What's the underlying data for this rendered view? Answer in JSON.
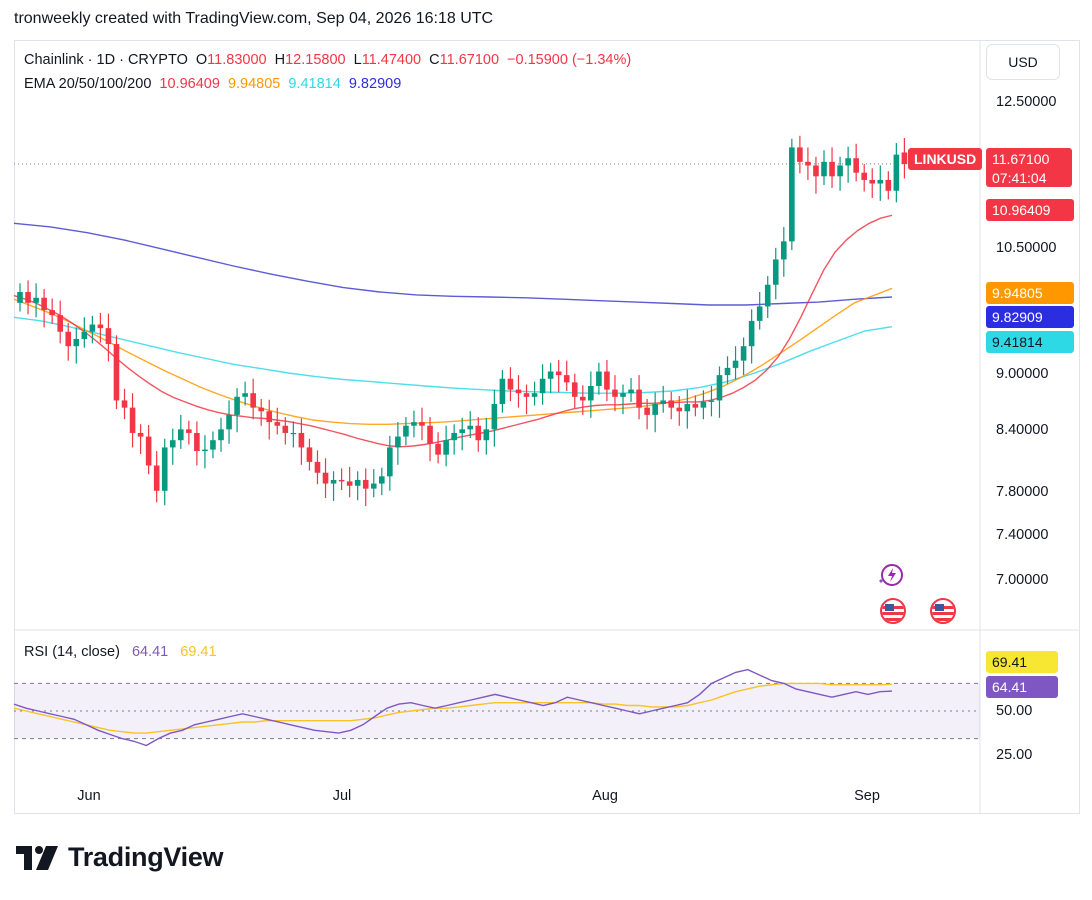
{
  "header": {
    "attribution": "tronweekly created with TradingView.com, Sep 04, 2026 16:18 UTC"
  },
  "brand": {
    "name": "TradingView"
  },
  "currency_button": "USD",
  "legend": {
    "symbol": "Chainlink · 1D · CRYPTO",
    "o_label": "O",
    "o_value": "11.83000",
    "h_label": "H",
    "h_value": "12.15800",
    "l_label": "L",
    "l_value": "11.47400",
    "c_label": "C",
    "c_value": "11.67100",
    "change": "−0.15900 (−1.34%)",
    "ema_label": "EMA 20/50/100/200",
    "ema20": "10.96409",
    "ema50": "9.94805",
    "ema100": "9.41814",
    "ema200": "9.82909"
  },
  "rsi_legend": {
    "label": "RSI (14, close)",
    "rsi": "64.41",
    "ma": "69.41"
  },
  "price_tags": {
    "symbol": "LINKUSD",
    "last": "11.67100",
    "countdown": "07:41:04",
    "ema20": "10.96409",
    "ema50": "9.94805",
    "ema200": "9.82909",
    "ema100": "9.41814",
    "rsi_ma": "69.41",
    "rsi": "64.41"
  },
  "colors": {
    "up": "#089981",
    "down": "#f23645",
    "ema20": "#f23645",
    "ema50": "#ff9800",
    "ema100": "#2ed9e6",
    "ema200": "#3f3fcf",
    "rsi": "#7e57c2",
    "rsi_ma": "#f7c325"
  },
  "icons": [
    "lightning-icon",
    "us-flag-icon",
    "us-flag-icon",
    "tradingview-logo"
  ],
  "chart_data": [
    {
      "type": "candlestick",
      "title": "Chainlink · 1D · CRYPTO",
      "price_axis_ticks": [
        "12.50000",
        "10.50000",
        "9.00000",
        "8.40000",
        "7.80000",
        "7.40000",
        "7.00000"
      ],
      "x_axis_labels": [
        "Jun",
        "Jul",
        "Aug",
        "Sep"
      ],
      "close": [
        9.9,
        9.75,
        9.82,
        9.65,
        9.58,
        9.35,
        9.15,
        9.25,
        9.35,
        9.45,
        9.4,
        9.18,
        8.4,
        8.3,
        7.95,
        7.9,
        7.5,
        7.15,
        7.75,
        7.85,
        8.0,
        7.95,
        7.7,
        7.72,
        7.85,
        8.0,
        8.2,
        8.45,
        8.5,
        8.3,
        8.25,
        8.1,
        8.05,
        7.95,
        7.95,
        7.75,
        7.55,
        7.4,
        7.25,
        7.3,
        7.28,
        7.22,
        7.3,
        7.18,
        7.25,
        7.35,
        7.75,
        7.9,
        8.05,
        8.1,
        8.05,
        7.8,
        7.65,
        7.85,
        7.95,
        8.0,
        8.05,
        7.85,
        8.0,
        8.35,
        8.7,
        8.55,
        8.5,
        8.45,
        8.5,
        8.7,
        8.8,
        8.75,
        8.65,
        8.45,
        8.4,
        8.6,
        8.8,
        8.55,
        8.45,
        8.5,
        8.55,
        8.3,
        8.2,
        8.35,
        8.4,
        8.3,
        8.25,
        8.35,
        8.3,
        8.38,
        8.4,
        8.75,
        8.85,
        8.95,
        9.15,
        9.5,
        9.7,
        10.0,
        10.35,
        10.6,
        11.9,
        11.7,
        11.65,
        11.5,
        11.7,
        11.5,
        11.65,
        11.75,
        11.55,
        11.45,
        11.4,
        11.45,
        11.3,
        11.8,
        11.67
      ],
      "open": [
        9.75,
        9.9,
        9.75,
        9.82,
        9.65,
        9.58,
        9.35,
        9.15,
        9.25,
        9.35,
        9.45,
        9.4,
        9.18,
        8.4,
        8.3,
        7.95,
        7.9,
        7.5,
        7.15,
        7.75,
        7.85,
        8.0,
        7.95,
        7.7,
        7.72,
        7.85,
        8.0,
        8.2,
        8.45,
        8.5,
        8.3,
        8.25,
        8.1,
        8.05,
        7.95,
        7.95,
        7.75,
        7.55,
        7.4,
        7.25,
        7.3,
        7.28,
        7.22,
        7.3,
        7.18,
        7.25,
        7.35,
        7.75,
        7.9,
        8.05,
        8.1,
        8.05,
        7.8,
        7.65,
        7.85,
        7.95,
        8.0,
        8.05,
        7.85,
        8.0,
        8.35,
        8.7,
        8.55,
        8.5,
        8.45,
        8.5,
        8.7,
        8.8,
        8.75,
        8.65,
        8.45,
        8.4,
        8.6,
        8.8,
        8.55,
        8.45,
        8.5,
        8.55,
        8.3,
        8.2,
        8.35,
        8.4,
        8.3,
        8.25,
        8.35,
        8.3,
        8.38,
        8.4,
        8.75,
        8.85,
        8.95,
        9.15,
        9.5,
        9.7,
        10.0,
        10.35,
        10.6,
        11.9,
        11.7,
        11.65,
        11.5,
        11.7,
        11.5,
        11.65,
        11.75,
        11.55,
        11.45,
        11.4,
        11.45,
        11.3,
        11.83
      ],
      "ema20": [
        9.85,
        9.8,
        9.74,
        9.66,
        9.58,
        9.48,
        9.37,
        9.25,
        9.12,
        8.98,
        8.85,
        8.73,
        8.62,
        8.52,
        8.44,
        8.38,
        8.32,
        8.27,
        8.23,
        8.2,
        8.18,
        8.16,
        8.15,
        8.13,
        8.11,
        8.08,
        8.05,
        8.01,
        7.97,
        7.93,
        7.88,
        7.84,
        7.8,
        7.77,
        7.76,
        7.77,
        7.79,
        7.82,
        7.85,
        7.89,
        7.92,
        7.95,
        7.98,
        8.02,
        8.06,
        8.1,
        8.14,
        8.19,
        8.24,
        8.28,
        8.31,
        8.33,
        8.34,
        8.34,
        8.35,
        8.36,
        8.36,
        8.37,
        8.37,
        8.38,
        8.38,
        8.4,
        8.44,
        8.5,
        8.58,
        8.68,
        8.82,
        9.0,
        9.25,
        9.55,
        9.88,
        10.2,
        10.45,
        10.62,
        10.75,
        10.85,
        10.92,
        10.96
      ],
      "ema50": [
        9.8,
        9.7,
        9.6,
        9.48,
        9.35,
        9.22,
        9.08,
        8.95,
        8.82,
        8.7,
        8.58,
        8.48,
        8.39,
        8.31,
        8.24,
        8.18,
        8.13,
        8.1,
        8.08,
        8.07,
        8.07,
        8.08,
        8.09,
        8.1,
        8.12,
        8.14,
        8.16,
        8.18,
        8.2,
        8.22,
        8.24,
        8.26,
        8.28,
        8.3,
        8.33,
        8.37,
        8.42,
        8.5,
        8.6,
        8.73,
        8.88,
        9.05,
        9.22,
        9.4,
        9.58,
        9.75,
        9.85,
        9.95
      ],
      "ema100": [
        9.55,
        9.5,
        9.42,
        9.33,
        9.24,
        9.15,
        9.06,
        8.98,
        8.9,
        8.84,
        8.78,
        8.73,
        8.69,
        8.66,
        8.63,
        8.6,
        8.57,
        8.55,
        8.53,
        8.52,
        8.51,
        8.5,
        8.5,
        8.51,
        8.53,
        8.58,
        8.66,
        8.78,
        8.92,
        9.08,
        9.22,
        9.36,
        9.42
      ],
      "ema200": [
        10.85,
        10.8,
        10.72,
        10.62,
        10.5,
        10.38,
        10.26,
        10.15,
        10.05,
        9.96,
        9.9,
        9.86,
        9.84,
        9.83,
        9.82,
        9.8,
        9.78,
        9.76,
        9.74,
        9.72,
        9.72,
        9.74,
        9.76,
        9.8,
        9.83
      ],
      "last_price": 11.671,
      "ema_levels": {
        "ema20": 10.96409,
        "ema50": 9.94805,
        "ema100": 9.41814,
        "ema200": 9.82909
      }
    },
    {
      "type": "line",
      "title": "RSI (14, close)",
      "y_axis_ticks": [
        "50.00",
        "25.00"
      ],
      "bands": [
        30,
        70
      ],
      "rsi": [
        55,
        52,
        50,
        48,
        46,
        44,
        40,
        36,
        33,
        30,
        28,
        25,
        30,
        34,
        36,
        40,
        42,
        44,
        46,
        48,
        46,
        44,
        42,
        40,
        38,
        36,
        35,
        34,
        36,
        40,
        46,
        52,
        55,
        56,
        54,
        52,
        54,
        56,
        58,
        60,
        62,
        60,
        58,
        56,
        54,
        56,
        60,
        58,
        56,
        54,
        52,
        50,
        48,
        50,
        52,
        54,
        56,
        62,
        70,
        74,
        78,
        80,
        76,
        72,
        70,
        66,
        64,
        62,
        60,
        62,
        64,
        62,
        64,
        64.41
      ],
      "rsi_ma": [
        52,
        50,
        48,
        46,
        44,
        42,
        40,
        38,
        36,
        35,
        34,
        34,
        35,
        36,
        37,
        38,
        39,
        40,
        41,
        42,
        42,
        43,
        43,
        43,
        43,
        43,
        43,
        43,
        43,
        44,
        45,
        47,
        49,
        50,
        51,
        52,
        52,
        53,
        54,
        55,
        56,
        56,
        56,
        56,
        56,
        56,
        56,
        56,
        56,
        55,
        55,
        54,
        54,
        53,
        53,
        53,
        54,
        56,
        58,
        61,
        64,
        66,
        68,
        69,
        70,
        70,
        70,
        70,
        69,
        69,
        69,
        69,
        69,
        69.41
      ]
    }
  ]
}
